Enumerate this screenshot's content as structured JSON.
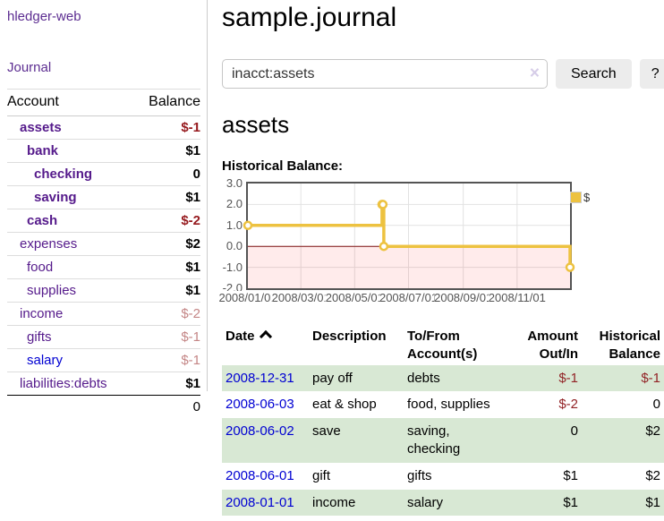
{
  "app": {
    "title": "hledger-web"
  },
  "sidebar": {
    "journal_label": "Journal",
    "accounts_table": {
      "headers": {
        "account": "Account",
        "balance": "Balance"
      },
      "rows": [
        {
          "name": "assets",
          "depth": 1,
          "bold": true,
          "link_style": "visited",
          "balance": "$-1",
          "balance_class": "neg"
        },
        {
          "name": "bank",
          "depth": 2,
          "bold": true,
          "link_style": "visited",
          "balance": "$1",
          "balance_class": "pos"
        },
        {
          "name": "checking",
          "depth": 3,
          "bold": true,
          "link_style": "visited",
          "balance": "0",
          "balance_class": "pos"
        },
        {
          "name": "saving",
          "depth": 3,
          "bold": true,
          "link_style": "visited",
          "balance": "$1",
          "balance_class": "pos"
        },
        {
          "name": "cash",
          "depth": 2,
          "bold": true,
          "link_style": "visited",
          "balance": "$-2",
          "balance_class": "neg"
        },
        {
          "name": "expenses",
          "depth": 1,
          "bold": false,
          "link_style": "visited",
          "balance": "$2",
          "balance_class": "pos"
        },
        {
          "name": "food",
          "depth": 2,
          "bold": false,
          "link_style": "visited",
          "balance": "$1",
          "balance_class": "pos"
        },
        {
          "name": "supplies",
          "depth": 2,
          "bold": false,
          "link_style": "visited",
          "balance": "$1",
          "balance_class": "pos"
        },
        {
          "name": "income",
          "depth": 1,
          "bold": false,
          "link_style": "visited",
          "balance": "$-2",
          "balance_class": "neg-muted"
        },
        {
          "name": "gifts",
          "depth": 2,
          "bold": false,
          "link_style": "visited",
          "balance": "$-1",
          "balance_class": "neg-muted"
        },
        {
          "name": "salary",
          "depth": 2,
          "bold": false,
          "link_style": "unvisited",
          "balance": "$-1",
          "balance_class": "neg-muted"
        },
        {
          "name": "liabilities:debts",
          "depth": 1,
          "bold": false,
          "link_style": "visited",
          "balance": "$1",
          "balance_class": "pos"
        }
      ],
      "total": "0"
    }
  },
  "main": {
    "title": "sample.journal",
    "search": {
      "value": "inacct:assets",
      "clear_icon": "×",
      "button_label": "Search",
      "help_label": "?"
    },
    "account_heading": "assets",
    "chart_title": "Historical Balance:"
  },
  "chart_data": {
    "type": "line",
    "step": true,
    "series": [
      {
        "name": "$",
        "color": "#edc240",
        "points": [
          [
            "2008-01-01",
            1
          ],
          [
            "2008-06-01",
            2
          ],
          [
            "2008-06-02",
            2
          ],
          [
            "2008-06-03",
            0
          ],
          [
            "2008-12-31",
            -1
          ]
        ]
      }
    ],
    "x_ticks": [
      "2008/01/01",
      "2008/03/01",
      "2008/05/01",
      "2008/07/01",
      "2008/09/01",
      "2008/11/01"
    ],
    "y_ticks": [
      "3.0",
      "2.0",
      "1.0",
      "0.0",
      "-1.0",
      "-2.0"
    ],
    "xlim": [
      "2008-01-01",
      "2008-12-31"
    ],
    "ylim": [
      -2,
      3
    ],
    "grid": true,
    "grid_color": "#e2e2e2",
    "legend_position": "top-right",
    "zero_line_color": "#801515",
    "negative_region": {
      "color": "#ff0000",
      "opacity": 0.08
    }
  },
  "register": {
    "headers": [
      {
        "label": "Date",
        "sorted": "asc"
      },
      {
        "label": "Description"
      },
      {
        "label": "To/From Account(s)"
      },
      {
        "label": "Amount Out/In",
        "align": "right"
      },
      {
        "label": "Historical Balance",
        "align": "right"
      }
    ],
    "rows": [
      {
        "date": "2008-12-31",
        "description": "pay off",
        "accounts": "debts",
        "amount": "$-1",
        "amount_negative": true,
        "balance": "$-1",
        "balance_negative": true,
        "shaded": true
      },
      {
        "date": "2008-06-03",
        "description": "eat & shop",
        "accounts": "food, supplies",
        "amount": "$-2",
        "amount_negative": true,
        "balance": "0",
        "balance_negative": false,
        "shaded": false
      },
      {
        "date": "2008-06-02",
        "description": "save",
        "accounts": "saving, checking",
        "amount": "0",
        "amount_negative": false,
        "balance": "$2",
        "balance_negative": false,
        "shaded": true
      },
      {
        "date": "2008-06-01",
        "description": "gift",
        "accounts": "gifts",
        "amount": "$1",
        "amount_negative": false,
        "balance": "$2",
        "balance_negative": false,
        "shaded": false
      },
      {
        "date": "2008-01-01",
        "description": "income",
        "accounts": "salary",
        "amount": "$1",
        "amount_negative": false,
        "balance": "$1",
        "balance_negative": false,
        "shaded": true
      }
    ]
  },
  "colors": {
    "link_purple": "#551a8b",
    "link_blue": "#0000d2",
    "negative_strong": "#961a1e",
    "negative_muted": "#c48686",
    "row_shade_green": "#d8e8d4",
    "series_yellow": "#edc240"
  }
}
